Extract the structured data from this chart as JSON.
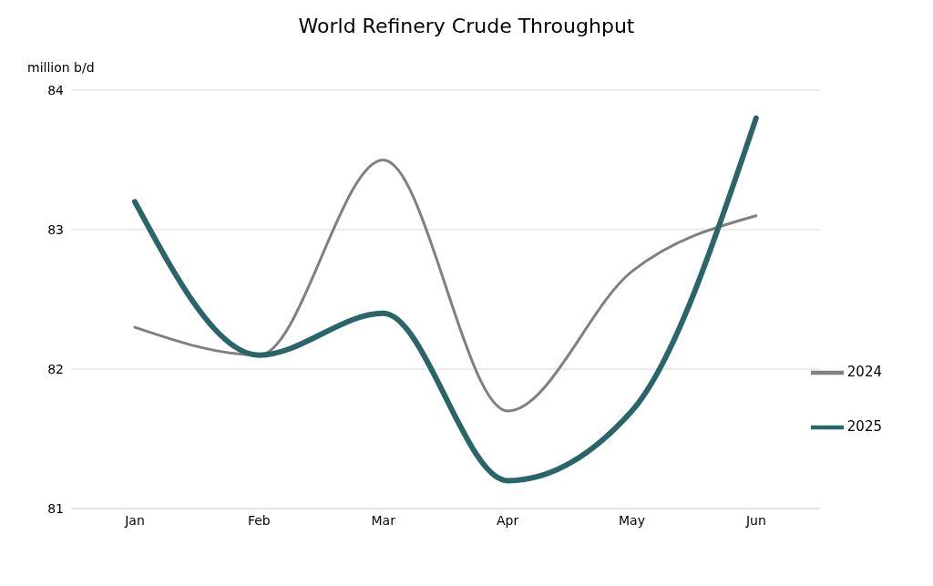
{
  "chart_data": {
    "type": "line",
    "title": "World Refinery Crude Throughput",
    "ylabel": "million b/d",
    "categories": [
      "Jan",
      "Feb",
      "Mar",
      "Apr",
      "May",
      "Jun"
    ],
    "series": [
      {
        "name": "2024",
        "color": "#808080",
        "values": [
          82.3,
          82.1,
          83.5,
          81.7,
          82.7,
          83.1
        ]
      },
      {
        "name": "2025",
        "color": "#2a6669",
        "values": [
          83.2,
          82.1,
          82.4,
          81.2,
          81.7,
          83.8
        ]
      }
    ],
    "ylim": [
      81,
      84
    ],
    "yticks": [
      81,
      82,
      83,
      84
    ],
    "grid": "y",
    "legend": "right",
    "marker": "none",
    "line_style": "solid"
  }
}
